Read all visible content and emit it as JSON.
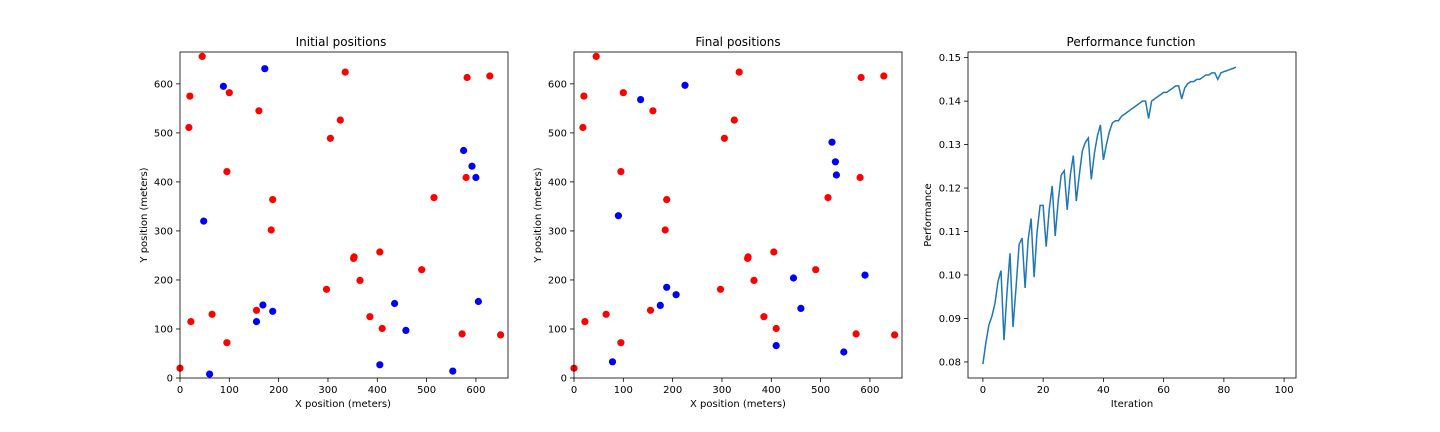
{
  "chart_data": [
    {
      "type": "scatter",
      "title": "Initial positions",
      "xlabel": "X position (meters)",
      "ylabel": "Y position (meters)",
      "xlim": [
        0,
        665
      ],
      "ylim": [
        0,
        665
      ],
      "xticks": [
        0,
        100,
        200,
        300,
        400,
        500,
        600
      ],
      "yticks": [
        0,
        100,
        200,
        300,
        400,
        500,
        600
      ],
      "series": [
        {
          "color": "#ff0000",
          "points": [
            [
              45,
              656
            ],
            [
              20,
              575
            ],
            [
              100,
              582
            ],
            [
              18,
              511
            ],
            [
              160,
              545
            ],
            [
              335,
              624
            ],
            [
              582,
              613
            ],
            [
              628,
              616
            ],
            [
              325,
              526
            ],
            [
              305,
              489
            ],
            [
              95,
              421
            ],
            [
              188,
              364
            ],
            [
              185,
              302
            ],
            [
              580,
              409
            ],
            [
              515,
              368
            ],
            [
              353,
              247
            ],
            [
              352,
              244
            ],
            [
              405,
              257
            ],
            [
              297,
              181
            ],
            [
              365,
              199
            ],
            [
              490,
              221
            ],
            [
              155,
              138
            ],
            [
              22,
              115
            ],
            [
              65,
              130
            ],
            [
              385,
              125
            ],
            [
              410,
              101
            ],
            [
              95,
              72
            ],
            [
              572,
              90
            ],
            [
              650,
              88
            ],
            [
              0,
              20
            ]
          ]
        },
        {
          "color": "#0000ff",
          "points": [
            [
              88,
              595
            ],
            [
              172,
              631
            ],
            [
              575,
              464
            ],
            [
              592,
              432
            ],
            [
              600,
              409
            ],
            [
              48,
              320
            ],
            [
              168,
              149
            ],
            [
              188,
              136
            ],
            [
              155,
              115
            ],
            [
              435,
              152
            ],
            [
              605,
              156
            ],
            [
              458,
              97
            ],
            [
              405,
              27
            ],
            [
              60,
              8
            ],
            [
              553,
              14
            ]
          ]
        }
      ]
    },
    {
      "type": "scatter",
      "title": "Final positions",
      "xlabel": "X position (meters)",
      "ylabel": "Y position (meters)",
      "xlim": [
        0,
        665
      ],
      "ylim": [
        0,
        665
      ],
      "xticks": [
        0,
        100,
        200,
        300,
        400,
        500,
        600
      ],
      "yticks": [
        0,
        100,
        200,
        300,
        400,
        500,
        600
      ],
      "series": [
        {
          "color": "#ff0000",
          "points": [
            [
              45,
              656
            ],
            [
              20,
              575
            ],
            [
              100,
              582
            ],
            [
              18,
              511
            ],
            [
              160,
              545
            ],
            [
              335,
              624
            ],
            [
              582,
              613
            ],
            [
              628,
              616
            ],
            [
              325,
              526
            ],
            [
              305,
              489
            ],
            [
              95,
              421
            ],
            [
              188,
              364
            ],
            [
              185,
              302
            ],
            [
              580,
              409
            ],
            [
              515,
              368
            ],
            [
              353,
              247
            ],
            [
              352,
              244
            ],
            [
              405,
              257
            ],
            [
              297,
              181
            ],
            [
              365,
              199
            ],
            [
              490,
              221
            ],
            [
              155,
              138
            ],
            [
              22,
              115
            ],
            [
              65,
              130
            ],
            [
              385,
              125
            ],
            [
              410,
              101
            ],
            [
              95,
              72
            ],
            [
              572,
              90
            ],
            [
              650,
              88
            ],
            [
              0,
              20
            ]
          ]
        },
        {
          "color": "#0000ff",
          "points": [
            [
              135,
              568
            ],
            [
              225,
              597
            ],
            [
              523,
              481
            ],
            [
              530,
              441
            ],
            [
              532,
              414
            ],
            [
              90,
              331
            ],
            [
              188,
              185
            ],
            [
              207,
              170
            ],
            [
              175,
              148
            ],
            [
              445,
              204
            ],
            [
              590,
              210
            ],
            [
              460,
              142
            ],
            [
              410,
              66
            ],
            [
              78,
              33
            ],
            [
              547,
              53
            ]
          ]
        }
      ]
    },
    {
      "type": "line",
      "title": "Performance function",
      "xlabel": "Iteration",
      "ylabel": "Performance",
      "xlim": [
        -4.95,
        103.95
      ],
      "ylim": [
        0.0763,
        0.1513
      ],
      "xticks": [
        0,
        20,
        40,
        60,
        80,
        100
      ],
      "yticks": [
        0.08,
        0.09,
        0.1,
        0.11,
        0.12,
        0.13,
        0.14,
        0.15
      ],
      "ytick_labels": [
        "0.08",
        "0.09",
        "0.10",
        "0.11",
        "0.12",
        "0.13",
        "0.14",
        "0.15"
      ],
      "series": [
        {
          "color": "#1f77b4",
          "values": [
            0.0795,
            0.0845,
            0.0885,
            0.0905,
            0.0935,
            0.0985,
            0.101,
            0.085,
            0.096,
            0.105,
            0.088,
            0.097,
            0.107,
            0.1085,
            0.097,
            0.108,
            0.113,
            0.0995,
            0.11,
            0.116,
            0.116,
            0.1065,
            0.115,
            0.1205,
            0.109,
            0.117,
            0.123,
            0.124,
            0.115,
            0.123,
            0.1275,
            0.117,
            0.123,
            0.1285,
            0.1305,
            0.1315,
            0.122,
            0.128,
            0.132,
            0.1345,
            0.1265,
            0.13,
            0.133,
            0.135,
            0.1355,
            0.1355,
            0.1365,
            0.137,
            0.1375,
            0.138,
            0.1385,
            0.139,
            0.1395,
            0.14,
            0.14,
            0.136,
            0.14,
            0.1405,
            0.141,
            0.1415,
            0.142,
            0.142,
            0.1425,
            0.143,
            0.1435,
            0.1435,
            0.1405,
            0.143,
            0.144,
            0.1445,
            0.1445,
            0.145,
            0.145,
            0.1455,
            0.146,
            0.146,
            0.1465,
            0.1465,
            0.145,
            0.1465,
            0.1468,
            0.147,
            0.1473,
            0.1475,
            0.1478
          ]
        }
      ]
    }
  ]
}
